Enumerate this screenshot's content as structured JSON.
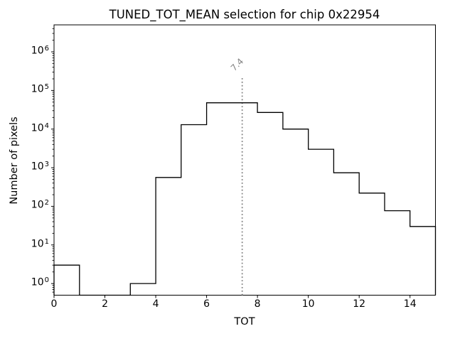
{
  "chart_data": {
    "type": "bar",
    "subtype": "step-histogram",
    "title": "TUNED_TOT_MEAN selection for chip 0x22954",
    "xlabel": "TOT",
    "ylabel": "Number of pixels",
    "yscale": "log",
    "grid": false,
    "legend": null,
    "xlim": [
      0,
      15
    ],
    "ylim": [
      0.5,
      5000000
    ],
    "bin_edges": [
      0,
      1,
      2,
      3,
      4,
      5,
      6,
      7,
      8,
      9,
      10,
      11,
      12,
      13,
      14,
      15
    ],
    "counts": [
      3,
      0,
      0,
      1,
      560,
      13000,
      48000,
      48000,
      27000,
      10000,
      3000,
      740,
      220,
      77,
      30
    ],
    "x_ticks": [
      0,
      2,
      4,
      6,
      8,
      10,
      12,
      14
    ],
    "y_tick_base": "10",
    "y_tick_exponents": [
      0,
      1,
      2,
      3,
      4,
      5,
      6
    ],
    "line_color": "#000000",
    "axis_color": "#000000",
    "background_color": "#ffffff",
    "annotation": {
      "label": "7.4",
      "x": 7.4,
      "color": "#858585",
      "style": "dotted-vline"
    }
  }
}
